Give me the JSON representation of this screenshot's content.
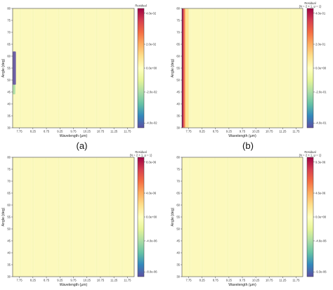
{
  "chart_data": [
    {
      "type": "heatmap",
      "label": "(a)",
      "xlabel": "Wavelength (μm)",
      "ylabel": "Angle (deg)",
      "x_ticks": [
        "7.75",
        "8.25",
        "8.75",
        "9.25",
        "9.75",
        "10.25",
        "10.75",
        "11.25",
        "11.75"
      ],
      "y_ticks": [
        "30",
        "35",
        "40",
        "45",
        "50",
        "55",
        "60",
        "65",
        "70",
        "75",
        "80"
      ],
      "ylim": [
        30,
        80
      ],
      "colorbar_title": "Residual",
      "colorbar_ticks": [
        "-4.0e-02",
        "-2.0e-02",
        "0.0e+00",
        "2.0e-02",
        "4.0e-02"
      ],
      "features": [
        {
          "kind": "band",
          "x_from": 7.5,
          "x_to": 7.62,
          "y_from": 48,
          "y_to": 62,
          "level": -0.9
        },
        {
          "kind": "band",
          "x_from": 7.5,
          "x_to": 7.6,
          "y_from": 44,
          "y_to": 48,
          "level": -0.5
        }
      ]
    },
    {
      "type": "heatmap",
      "label": "(b)",
      "xlabel": "Wavelength (μm)",
      "ylabel": "Angle (deg)",
      "x_ticks": [
        "7.75",
        "8.25",
        "8.75",
        "9.25",
        "9.75",
        "10.25",
        "10.75",
        "11.25",
        "11.75"
      ],
      "y_ticks": [
        "30",
        "35",
        "40",
        "45",
        "50",
        "55",
        "60",
        "65",
        "70",
        "75",
        "80"
      ],
      "ylim": [
        30,
        80
      ],
      "colorbar_title": "Residual",
      "colorbar_subtitle": "(N = 2 × 1, μ = 1)",
      "colorbar_ticks": [
        "-4.0e-01",
        "-2.0e-01",
        "0.0e+00",
        "2.0e-01",
        "4.0e-01"
      ],
      "features": [
        {
          "kind": "band",
          "x_from": 7.5,
          "x_to": 7.56,
          "y_from": 30,
          "y_to": 80,
          "level": 1.0
        },
        {
          "kind": "band",
          "x_from": 7.56,
          "x_to": 7.62,
          "y_from": 30,
          "y_to": 80,
          "level": 0.55
        },
        {
          "kind": "band",
          "x_from": 7.62,
          "x_to": 7.75,
          "y_from": 30,
          "y_to": 80,
          "level": 0.2
        }
      ]
    },
    {
      "type": "heatmap",
      "label": "(c)",
      "xlabel": "Wavelength (μm)",
      "ylabel": "Angle (deg)",
      "x_ticks": [
        "7.75",
        "8.25",
        "8.75",
        "9.25",
        "9.75",
        "10.25",
        "10.75",
        "11.25",
        "11.75"
      ],
      "y_ticks": [
        "30",
        "35",
        "40",
        "45",
        "50",
        "55",
        "60",
        "65",
        "70",
        "75",
        "80"
      ],
      "ylim": [
        30,
        80
      ],
      "colorbar_title": "Residual",
      "colorbar_subtitle": "(N = 2 × 1, μ = 1)",
      "colorbar_ticks": [
        "-8.0e-06",
        "-4.0e-06",
        "0.0e+00",
        "4.0e-06",
        "8.0e-06"
      ],
      "features": []
    },
    {
      "type": "heatmap",
      "label": "(d)",
      "xlabel": "Wavelength (μm)",
      "ylabel": "Angle (deg)",
      "x_ticks": [
        "7.75",
        "8.25",
        "8.75",
        "9.25",
        "9.75",
        "10.25",
        "10.75",
        "11.25",
        "11.75"
      ],
      "y_ticks": [
        "30",
        "35",
        "40",
        "45",
        "50",
        "55",
        "60",
        "65",
        "70",
        "75",
        "80"
      ],
      "ylim": [
        30,
        80
      ],
      "colorbar_title": "Residual",
      "colorbar_subtitle": "(N = 2 × 1, μ = 1)",
      "colorbar_ticks": [
        "-9.3e-06",
        "-4.6e-06",
        "0.0e+00",
        "4.6e-06",
        "9.3e-06"
      ],
      "features": []
    }
  ],
  "colors": {
    "background_field": "#fcf9bc",
    "colormap": [
      "#5e4fa2",
      "#3288bd",
      "#66c2a5",
      "#abdda4",
      "#e6f598",
      "#ffffbf",
      "#fee08b",
      "#fdae61",
      "#f46d43",
      "#d53e4f",
      "#9e0142"
    ]
  }
}
